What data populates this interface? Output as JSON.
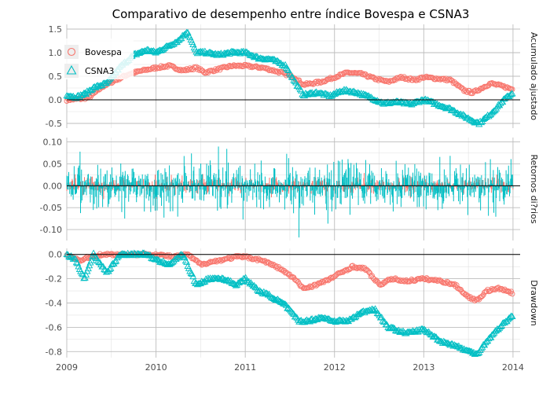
{
  "chart_data": {
    "type": "line",
    "title": "Comparativo de desempenho entre índice Bovespa e CSNA3",
    "colors": {
      "bovespa": "#F8766D",
      "csna3": "#00BFC4"
    },
    "legend": {
      "placement": "top-left",
      "entries": [
        {
          "label": "Bovespa",
          "marker": "circle",
          "color": "#F8766D"
        },
        {
          "label": "CSNA3",
          "marker": "triangle",
          "color": "#00BFC4"
        }
      ]
    },
    "x_ticks": [
      "2009",
      "2010",
      "2011",
      "2012",
      "2013",
      "2014"
    ],
    "xlim": [
      2009.0,
      2014.08
    ],
    "grid": true,
    "panels": [
      {
        "strip_label": "Acumulado ajustado",
        "ylim": [
          -0.6,
          1.6
        ],
        "y_ticks": [
          "1.5",
          "1.0",
          "0.5",
          "0.0",
          "-0.5"
        ],
        "y_tick_values": [
          1.5,
          1.0,
          0.5,
          0.0,
          -0.5
        ],
        "style": "markers",
        "series": [
          {
            "name": "Bovespa",
            "x": [
              2009.0,
              2009.15,
              2009.25,
              2009.4,
              2009.55,
              2009.7,
              2009.85,
              2010.0,
              2010.15,
              2010.3,
              2010.45,
              2010.55,
              2010.7,
              2010.85,
              2011.0,
              2011.2,
              2011.4,
              2011.55,
              2011.65,
              2011.75,
              2011.85,
              2012.0,
              2012.15,
              2012.3,
              2012.45,
              2012.6,
              2012.75,
              2012.9,
              2013.0,
              2013.15,
              2013.3,
              2013.45,
              2013.55,
              2013.65,
              2013.75,
              2013.9,
              2014.0
            ],
            "y": [
              0.0,
              0.02,
              0.05,
              0.28,
              0.42,
              0.55,
              0.62,
              0.68,
              0.72,
              0.62,
              0.68,
              0.58,
              0.65,
              0.72,
              0.72,
              0.68,
              0.58,
              0.48,
              0.32,
              0.35,
              0.38,
              0.48,
              0.58,
              0.55,
              0.45,
              0.38,
              0.48,
              0.42,
              0.48,
              0.45,
              0.42,
              0.2,
              0.15,
              0.25,
              0.35,
              0.28,
              0.22
            ]
          },
          {
            "name": "CSNA3",
            "x": [
              2009.0,
              2009.1,
              2009.2,
              2009.3,
              2009.45,
              2009.6,
              2009.75,
              2009.9,
              2010.0,
              2010.15,
              2010.25,
              2010.35,
              2010.45,
              2010.55,
              2010.7,
              2010.85,
              2011.0,
              2011.15,
              2011.3,
              2011.45,
              2011.55,
              2011.65,
              2011.8,
              2011.95,
              2012.1,
              2012.25,
              2012.4,
              2012.55,
              2012.7,
              2012.85,
              2013.0,
              2013.15,
              2013.3,
              2013.45,
              2013.55,
              2013.62,
              2013.75,
              2013.9,
              2014.0
            ],
            "y": [
              0.1,
              0.05,
              0.12,
              0.25,
              0.35,
              0.7,
              0.95,
              1.05,
              1.0,
              1.15,
              1.25,
              1.45,
              1.0,
              1.0,
              0.95,
              1.0,
              1.0,
              0.88,
              0.85,
              0.72,
              0.4,
              0.1,
              0.15,
              0.08,
              0.2,
              0.15,
              0.05,
              -0.08,
              -0.05,
              -0.1,
              0.0,
              -0.1,
              -0.2,
              -0.35,
              -0.45,
              -0.5,
              -0.3,
              0.0,
              0.15
            ]
          }
        ]
      },
      {
        "strip_label": "Retornos di?rios",
        "ylim": [
          -0.125,
          0.11
        ],
        "y_ticks": [
          "0.10",
          "0.05",
          "0.00",
          "-0.05",
          "-0.10"
        ],
        "y_tick_values": [
          0.1,
          0.05,
          0.0,
          -0.05,
          -0.1
        ],
        "style": "spikes",
        "series": [
          {
            "name": "Bovespa",
            "amplitude": 0.035
          },
          {
            "name": "CSNA3",
            "amplitude": 0.1,
            "min": -0.118
          }
        ]
      },
      {
        "strip_label": "Drawdown",
        "ylim": [
          -0.85,
          0.05
        ],
        "y_ticks": [
          "0.0",
          "-0.2",
          "-0.4",
          "-0.6",
          "-0.8"
        ],
        "y_tick_values": [
          0.0,
          -0.2,
          -0.4,
          -0.6,
          -0.8
        ],
        "style": "markers",
        "series": [
          {
            "name": "Bovespa",
            "x": [
              2009.0,
              2009.15,
              2009.25,
              2009.4,
              2009.6,
              2009.8,
              2010.0,
              2010.2,
              2010.35,
              2010.5,
              2010.7,
              2010.9,
              2011.0,
              2011.2,
              2011.4,
              2011.55,
              2011.65,
              2011.75,
              2011.9,
              2012.0,
              2012.2,
              2012.35,
              2012.5,
              2012.65,
              2012.8,
              2013.0,
              2013.2,
              2013.35,
              2013.5,
              2013.6,
              2013.7,
              2013.85,
              2014.0
            ],
            "y": [
              0.0,
              -0.05,
              -0.02,
              0.0,
              0.0,
              0.0,
              0.0,
              -0.02,
              0.0,
              -0.08,
              -0.05,
              -0.02,
              -0.02,
              -0.05,
              -0.12,
              -0.2,
              -0.28,
              -0.26,
              -0.22,
              -0.18,
              -0.1,
              -0.12,
              -0.25,
              -0.2,
              -0.22,
              -0.2,
              -0.22,
              -0.25,
              -0.35,
              -0.38,
              -0.3,
              -0.28,
              -0.32
            ]
          },
          {
            "name": "CSNA3",
            "x": [
              2009.0,
              2009.1,
              2009.2,
              2009.3,
              2009.45,
              2009.6,
              2009.75,
              2009.9,
              2010.0,
              2010.15,
              2010.3,
              2010.45,
              2010.6,
              2010.75,
              2010.9,
              2011.0,
              2011.15,
              2011.3,
              2011.45,
              2011.6,
              2011.7,
              2011.85,
              2012.0,
              2012.15,
              2012.3,
              2012.45,
              2012.6,
              2012.8,
              2013.0,
              2013.2,
              2013.35,
              2013.5,
              2013.6,
              2013.7,
              2013.85,
              2014.0
            ],
            "y": [
              0.0,
              -0.05,
              -0.2,
              0.0,
              -0.15,
              0.0,
              0.0,
              0.0,
              -0.05,
              -0.08,
              0.0,
              -0.25,
              -0.2,
              -0.2,
              -0.25,
              -0.2,
              -0.3,
              -0.35,
              -0.42,
              -0.55,
              -0.55,
              -0.52,
              -0.55,
              -0.55,
              -0.48,
              -0.45,
              -0.6,
              -0.65,
              -0.62,
              -0.72,
              -0.75,
              -0.8,
              -0.82,
              -0.72,
              -0.6,
              -0.5
            ]
          }
        ]
      }
    ]
  }
}
